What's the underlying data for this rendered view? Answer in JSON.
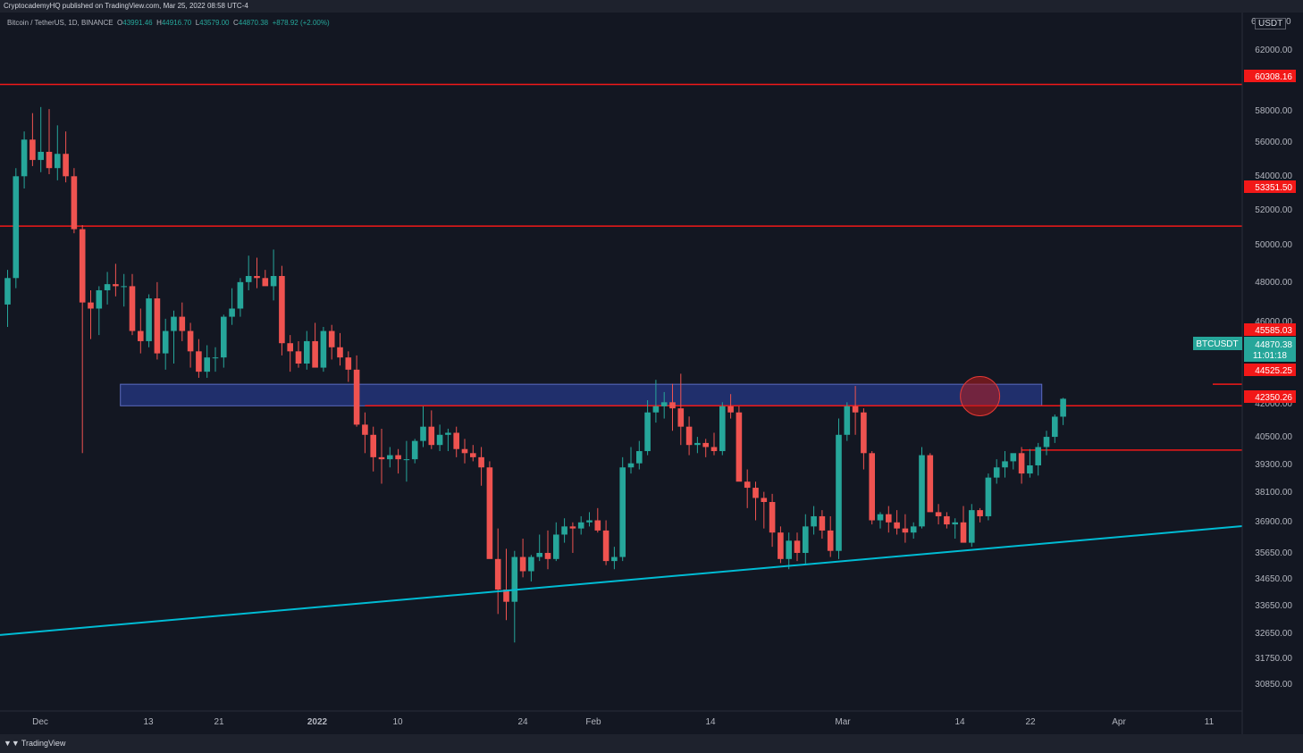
{
  "header": {
    "publish_note": "CryptocademyHQ published on TradingView.com, Mar 25, 2022 08:58 UTC-4",
    "symbol": "Bitcoin / TetherUS, 1D, BINANCE",
    "ohlc": {
      "o_label": "O",
      "o": "43991.46",
      "h_label": "H",
      "h": "44916.70",
      "l_label": "L",
      "l": "43579.00",
      "c_label": "C",
      "c": "44870.38",
      "change": "+878.92 (+2.00%)"
    }
  },
  "currency": "USDT",
  "footer": {
    "brand": "TradingView",
    "brand_icon": "tradingview-logo-icon"
  },
  "colors": {
    "up": "#26a69a",
    "down": "#ef5350",
    "level": "#f21818",
    "trendline": "#00bcd4",
    "zone": "#2a3f9e"
  },
  "chart_data": {
    "type": "candlestick",
    "title": "Bitcoin / TetherUS, 1D, BINANCE",
    "y_axis": {
      "side": "right",
      "ticks": [
        "62000.00",
        "58000.00",
        "56000.00",
        "54000.00",
        "52000.00",
        "50000.00",
        "48000.00",
        "46000.00",
        "42000.00",
        "40500.00",
        "39300.00",
        "38100.00",
        "36900.00",
        "35650.00",
        "34650.00",
        "33650.00",
        "32650.00",
        "31750.00",
        "30850.00"
      ],
      "partial_ticks": [
        "6",
        "0"
      ]
    },
    "x_axis": {
      "ticks": [
        "Dec",
        "13",
        "21",
        "2022",
        "10",
        "24",
        "Feb",
        "14",
        "Mar",
        "14",
        "22",
        "Apr",
        "11"
      ]
    },
    "levels": [
      {
        "price": "60308.16",
        "start": 0
      },
      {
        "price": "53351.50",
        "start": 0
      },
      {
        "price": "45585.03",
        "start": 145
      },
      {
        "price": "44525.25",
        "start": 43
      },
      {
        "price": "42350.26",
        "start": 122
      }
    ],
    "zone": {
      "low": 44525.25,
      "high": 45585.03,
      "start": 14,
      "end": 124
    },
    "trendline": {
      "from": [
        0,
        33300
      ],
      "to": [
        137,
        38200
      ]
    },
    "marker": {
      "candle": 117,
      "price": 45000,
      "shape": "circle"
    },
    "last_price": {
      "symbol": "BTCUSDT",
      "price": "44870.38",
      "countdown": "11:01:18"
    },
    "candles_ohlc": [
      [
        49500,
        51200,
        48400,
        50800
      ],
      [
        50800,
        56200,
        50300,
        55800
      ],
      [
        55800,
        58000,
        55200,
        57600
      ],
      [
        57600,
        58900,
        56300,
        56600
      ],
      [
        56600,
        59200,
        56000,
        57000
      ],
      [
        57000,
        59100,
        55900,
        56200
      ],
      [
        56200,
        58300,
        55600,
        56900
      ],
      [
        56900,
        58000,
        55500,
        55800
      ],
      [
        55800,
        56200,
        53000,
        53200
      ],
      [
        53200,
        53400,
        42200,
        49600
      ],
      [
        49600,
        50200,
        47800,
        49300
      ],
      [
        49300,
        50400,
        48000,
        50200
      ],
      [
        50200,
        51100,
        49500,
        50500
      ],
      [
        50500,
        51500,
        49900,
        50400
      ],
      [
        50400,
        51000,
        49400,
        50400
      ],
      [
        50400,
        51000,
        48000,
        48200
      ],
      [
        48200,
        49300,
        47100,
        47700
      ],
      [
        47700,
        50000,
        47400,
        49800
      ],
      [
        49800,
        50600,
        46800,
        47100
      ],
      [
        47100,
        48800,
        46300,
        48200
      ],
      [
        48200,
        49200,
        46600,
        48900
      ],
      [
        48900,
        49600,
        47700,
        48200
      ],
      [
        48200,
        48600,
        46400,
        47200
      ],
      [
        47200,
        47800,
        45900,
        46200
      ],
      [
        46200,
        47500,
        45900,
        46900
      ],
      [
        46900,
        47400,
        46200,
        46900
      ],
      [
        46900,
        49000,
        46400,
        48900
      ],
      [
        48900,
        50300,
        48500,
        49300
      ],
      [
        49300,
        50800,
        48900,
        50600
      ],
      [
        50600,
        51900,
        50200,
        50900
      ],
      [
        50900,
        51800,
        50300,
        50800
      ],
      [
        50800,
        51200,
        50500,
        50400
      ],
      [
        50400,
        52200,
        49700,
        50900
      ],
      [
        50900,
        51400,
        47000,
        47600
      ],
      [
        47600,
        48000,
        46200,
        47200
      ],
      [
        47200,
        47700,
        46400,
        46600
      ],
      [
        46600,
        48200,
        46300,
        47700
      ],
      [
        47700,
        48600,
        46600,
        46400
      ],
      [
        46400,
        48400,
        46200,
        48200
      ],
      [
        48200,
        48500,
        46800,
        47400
      ],
      [
        47400,
        48100,
        46500,
        46900
      ],
      [
        46900,
        47200,
        45700,
        46300
      ],
      [
        46300,
        47000,
        43500,
        43600
      ],
      [
        43600,
        44200,
        42200,
        43100
      ],
      [
        43100,
        43500,
        41300,
        42000
      ],
      [
        42000,
        43400,
        40700,
        41900
      ],
      [
        41900,
        42500,
        41500,
        42100
      ],
      [
        42100,
        42400,
        41200,
        41900
      ],
      [
        41900,
        42800,
        40800,
        41900
      ],
      [
        41900,
        42900,
        41700,
        42800
      ],
      [
        42800,
        44500,
        42500,
        43500
      ],
      [
        43500,
        44300,
        42400,
        42600
      ],
      [
        42600,
        43600,
        42300,
        43100
      ],
      [
        43100,
        43400,
        42300,
        43200
      ],
      [
        43200,
        43500,
        42000,
        42400
      ],
      [
        42400,
        42900,
        41700,
        42200
      ],
      [
        42200,
        42600,
        41800,
        42000
      ],
      [
        42000,
        42500,
        40600,
        41500
      ],
      [
        41500,
        41800,
        39000,
        37000
      ],
      [
        37000,
        38500,
        34300,
        35500
      ],
      [
        35500,
        37500,
        34000,
        34900
      ],
      [
        34900,
        37400,
        32900,
        37100
      ],
      [
        37100,
        38000,
        36100,
        36400
      ],
      [
        36400,
        37200,
        35900,
        37100
      ],
      [
        37100,
        38200,
        36900,
        37300
      ],
      [
        37300,
        38400,
        36500,
        37000
      ],
      [
        37000,
        38800,
        36900,
        38200
      ],
      [
        38200,
        39000,
        37800,
        38600
      ],
      [
        38600,
        38800,
        37300,
        38500
      ],
      [
        38500,
        39100,
        38200,
        38800
      ],
      [
        38800,
        39300,
        38600,
        38900
      ],
      [
        38900,
        39500,
        38300,
        38400
      ],
      [
        38400,
        38900,
        36700,
        36900
      ],
      [
        36900,
        37600,
        36500,
        37100
      ],
      [
        37100,
        42000,
        36900,
        41500
      ],
      [
        41500,
        42500,
        41200,
        41700
      ],
      [
        41700,
        42800,
        41400,
        42300
      ],
      [
        42300,
        44800,
        42100,
        44200
      ],
      [
        44200,
        45800,
        43700,
        44500
      ],
      [
        44500,
        45200,
        43900,
        44700
      ],
      [
        44700,
        45600,
        43300,
        44400
      ],
      [
        44400,
        46100,
        42600,
        43500
      ],
      [
        43500,
        44000,
        42100,
        42600
      ],
      [
        42600,
        43000,
        42200,
        42700
      ],
      [
        42700,
        42900,
        42000,
        42500
      ],
      [
        42500,
        43200,
        42100,
        42300
      ],
      [
        42300,
        44700,
        42100,
        44500
      ],
      [
        44500,
        45100,
        43900,
        44200
      ],
      [
        44200,
        44500,
        42000,
        40800
      ],
      [
        40800,
        41400,
        39500,
        40500
      ],
      [
        40500,
        40800,
        38900,
        40000
      ],
      [
        40000,
        40300,
        38500,
        39800
      ],
      [
        39800,
        40200,
        37600,
        38300
      ],
      [
        38300,
        38600,
        36800,
        37000
      ],
      [
        37000,
        38300,
        36500,
        37900
      ],
      [
        37900,
        38300,
        36900,
        37300
      ],
      [
        37300,
        39200,
        36700,
        38600
      ],
      [
        38600,
        39600,
        38200,
        39100
      ],
      [
        39100,
        39400,
        38000,
        38400
      ],
      [
        38400,
        39100,
        37100,
        37400
      ],
      [
        37400,
        43900,
        37000,
        43100
      ],
      [
        43100,
        44700,
        42800,
        44500
      ],
      [
        44500,
        45500,
        43100,
        44200
      ],
      [
        44200,
        44400,
        41400,
        42200
      ],
      [
        42200,
        42300,
        38700,
        38900
      ],
      [
        38900,
        39300,
        38500,
        39200
      ],
      [
        39200,
        39600,
        38300,
        38800
      ],
      [
        38800,
        39400,
        38200,
        38500
      ],
      [
        38500,
        39200,
        37800,
        38300
      ],
      [
        38300,
        38800,
        38000,
        38600
      ],
      [
        38600,
        42500,
        38500,
        42100
      ],
      [
        42100,
        42200,
        39400,
        39300
      ],
      [
        39300,
        39700,
        38700,
        39100
      ],
      [
        39100,
        39300,
        38500,
        38700
      ],
      [
        38700,
        39000,
        38000,
        38800
      ],
      [
        38800,
        39600,
        38500,
        37800
      ],
      [
        37800,
        39700,
        37600,
        39400
      ],
      [
        39400,
        39500,
        38800,
        39100
      ],
      [
        39100,
        41200,
        38900,
        41000
      ],
      [
        41000,
        41900,
        40700,
        41500
      ],
      [
        41500,
        42300,
        41000,
        41800
      ],
      [
        41800,
        42100,
        41400,
        42200
      ],
      [
        42200,
        42500,
        40700,
        41200
      ],
      [
        41200,
        42400,
        41000,
        41600
      ],
      [
        41600,
        42700,
        41100,
        42500
      ],
      [
        42500,
        43300,
        42100,
        43000
      ],
      [
        43000,
        44100,
        42700,
        43991.46
      ],
      [
        43991.46,
        44916.7,
        43579.0,
        44870.38
      ]
    ]
  }
}
